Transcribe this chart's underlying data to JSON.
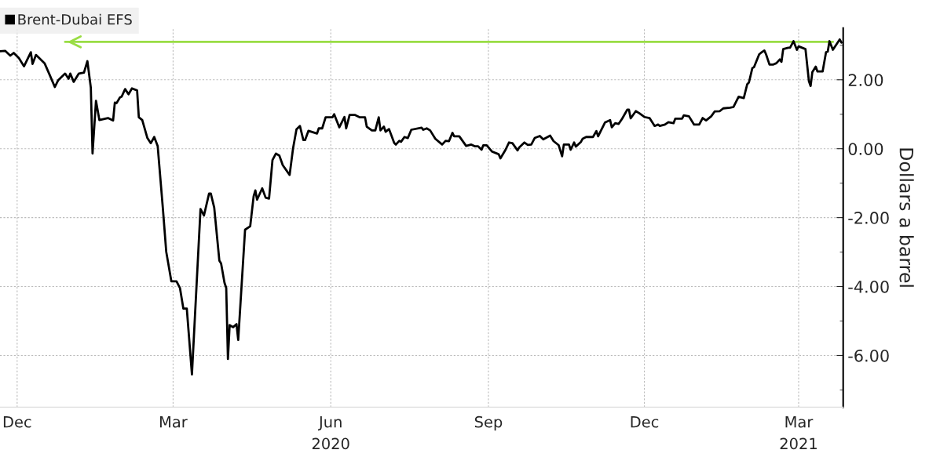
{
  "chart_data": {
    "type": "line",
    "ylabel": "Dollars a barrel",
    "xlim": [
      "2019-11-21",
      "2021-03-27"
    ],
    "xticks": [
      {
        "value": "2019-12-01",
        "label": "Dec"
      },
      {
        "value": "2020-03-01",
        "label": "Mar"
      },
      {
        "value": "2020-06-01",
        "label": "Jun\n2020"
      },
      {
        "value": "2020-09-01",
        "label": "Sep"
      },
      {
        "value": "2020-12-01",
        "label": "Dec"
      },
      {
        "value": "2021-03-01",
        "label": "Mar\n2021"
      }
    ],
    "ylim": [
      -7.5,
      3.5
    ],
    "yticks": [
      {
        "value": 3,
        "label": null
      },
      {
        "value": 2,
        "label": "2.00"
      },
      {
        "value": 1,
        "label": null
      },
      {
        "value": 0,
        "label": "0.00"
      },
      {
        "value": -1,
        "label": null
      },
      {
        "value": -2,
        "label": "-2.00"
      },
      {
        "value": -3,
        "label": null
      },
      {
        "value": -4,
        "label": "-4.00"
      },
      {
        "value": -5,
        "label": null
      },
      {
        "value": -6,
        "label": "-6.00"
      },
      {
        "value": -7,
        "label": null
      }
    ],
    "grid": true,
    "legend": "top left",
    "marker": "none",
    "line_style": "solid",
    "series": [
      {
        "name": "Brent-Dubai EFS",
        "color": "#000000",
        "x": [
          "2019-11-21",
          "2019-11-24",
          "2019-11-27",
          "2019-11-29",
          "2019-12-02",
          "2019-12-05",
          "2019-12-09",
          "2019-12-10",
          "2019-12-12",
          "2019-12-17",
          "2019-12-20",
          "2019-12-23",
          "2019-12-25",
          "2019-12-29",
          "2019-12-31",
          "2020-01-01",
          "2020-01-03",
          "2020-01-06",
          "2020-01-09",
          "2020-01-11",
          "2020-01-13",
          "2020-01-14",
          "2020-01-16",
          "2020-01-18",
          "2020-01-23",
          "2020-01-26",
          "2020-01-27",
          "2020-01-28",
          "2020-01-30",
          "2020-01-31",
          "2020-02-02",
          "2020-02-04",
          "2020-02-06",
          "2020-02-09",
          "2020-02-10",
          "2020-02-12",
          "2020-02-15",
          "2020-02-17",
          "2020-02-19",
          "2020-02-21",
          "2020-02-24",
          "2020-02-26",
          "2020-02-29",
          "2020-03-03",
          "2020-03-05",
          "2020-03-07",
          "2020-03-09",
          "2020-03-12",
          "2020-03-17",
          "2020-03-19",
          "2020-03-22",
          "2020-03-23",
          "2020-03-25",
          "2020-03-28",
          "2020-03-29",
          "2020-03-31",
          "2020-04-01",
          "2020-04-02",
          "2020-04-03",
          "2020-04-05",
          "2020-04-07",
          "2020-04-08",
          "2020-04-12",
          "2020-04-15",
          "2020-04-17",
          "2020-04-18",
          "2020-04-19",
          "2020-04-22",
          "2020-04-24",
          "2020-04-26",
          "2020-04-28",
          "2020-04-30",
          "2020-05-02",
          "2020-05-04",
          "2020-05-08",
          "2020-05-10",
          "2020-05-12",
          "2020-05-14",
          "2020-05-16",
          "2020-05-17",
          "2020-05-19",
          "2020-05-24",
          "2020-05-25",
          "2020-05-27",
          "2020-05-29",
          "2020-06-02",
          "2020-06-03",
          "2020-06-06",
          "2020-06-09",
          "2020-06-10",
          "2020-06-12",
          "2020-06-15",
          "2020-06-18",
          "2020-06-21",
          "2020-06-22",
          "2020-06-25",
          "2020-06-27",
          "2020-06-29",
          "2020-06-30",
          "2020-07-02",
          "2020-07-03",
          "2020-07-05",
          "2020-07-08",
          "2020-07-09",
          "2020-07-11",
          "2020-07-12",
          "2020-07-14",
          "2020-07-16",
          "2020-07-18",
          "2020-07-24",
          "2020-07-25",
          "2020-07-27",
          "2020-07-29",
          "2020-08-01",
          "2020-08-05",
          "2020-08-07",
          "2020-08-09",
          "2020-08-11",
          "2020-08-12",
          "2020-08-15",
          "2020-08-19",
          "2020-08-22",
          "2020-08-24",
          "2020-08-26",
          "2020-08-28",
          "2020-08-29",
          "2020-08-31",
          "2020-09-03",
          "2020-09-06",
          "2020-09-07",
          "2020-09-08",
          "2020-09-11",
          "2020-09-13",
          "2020-09-15",
          "2020-09-18",
          "2020-09-19",
          "2020-09-22",
          "2020-09-24",
          "2020-09-26",
          "2020-09-28",
          "2020-10-01",
          "2020-10-03",
          "2020-10-07",
          "2020-10-09",
          "2020-10-12",
          "2020-10-14",
          "2020-10-15",
          "2020-10-18",
          "2020-10-19",
          "2020-10-21",
          "2020-10-22",
          "2020-10-25",
          "2020-10-26",
          "2020-10-28",
          "2020-11-01",
          "2020-11-03",
          "2020-11-04",
          "2020-11-08",
          "2020-11-11",
          "2020-11-12",
          "2020-11-14",
          "2020-11-16",
          "2020-11-18",
          "2020-11-21",
          "2020-11-22",
          "2020-11-23",
          "2020-11-26",
          "2020-11-28",
          "2020-12-01",
          "2020-12-04",
          "2020-12-07",
          "2020-12-09",
          "2020-12-10",
          "2020-12-13",
          "2020-12-15",
          "2020-12-18",
          "2020-12-19",
          "2020-12-23",
          "2020-12-24",
          "2020-12-27",
          "2020-12-30",
          "2021-01-02",
          "2021-01-04",
          "2021-01-06",
          "2021-01-09",
          "2021-01-11",
          "2021-01-14",
          "2021-01-16",
          "2021-01-20",
          "2021-01-22",
          "2021-01-25",
          "2021-01-28",
          "2021-01-30",
          "2021-01-31",
          "2021-02-02",
          "2021-02-03",
          "2021-02-06",
          "2021-02-07",
          "2021-02-09",
          "2021-02-10",
          "2021-02-12",
          "2021-02-14",
          "2021-02-16",
          "2021-02-18",
          "2021-02-19",
          "2021-02-20",
          "2021-02-23",
          "2021-02-24",
          "2021-02-26",
          "2021-02-28",
          "2021-03-01",
          "2021-03-05",
          "2021-03-07",
          "2021-03-08",
          "2021-03-09",
          "2021-03-11",
          "2021-03-12",
          "2021-03-15",
          "2021-03-17",
          "2021-03-18",
          "2021-03-19",
          "2021-03-21",
          "2021-03-25",
          "2021-03-26"
        ],
        "values": [
          2.83,
          2.84,
          2.7,
          2.78,
          2.63,
          2.39,
          2.8,
          2.46,
          2.72,
          2.48,
          2.14,
          1.79,
          1.99,
          2.18,
          2.03,
          2.18,
          1.94,
          2.18,
          2.21,
          2.54,
          1.77,
          -0.14,
          1.39,
          0.83,
          0.89,
          0.82,
          1.34,
          1.32,
          1.49,
          1.51,
          1.73,
          1.58,
          1.75,
          1.69,
          0.91,
          0.83,
          0.31,
          0.16,
          0.34,
          0.08,
          -1.71,
          -2.99,
          -3.85,
          -3.85,
          -4.04,
          -4.64,
          -4.64,
          -6.55,
          -1.75,
          -1.94,
          -1.3,
          -1.3,
          -1.71,
          -3.25,
          -3.33,
          -3.89,
          -4.04,
          -6.1,
          -5.12,
          -5.18,
          -5.09,
          -5.55,
          -2.35,
          -2.25,
          -1.38,
          -1.21,
          -1.48,
          -1.15,
          -1.42,
          -1.45,
          -0.33,
          -0.14,
          -0.2,
          -0.48,
          -0.76,
          0.01,
          0.56,
          0.66,
          0.25,
          0.25,
          0.52,
          0.44,
          0.59,
          0.59,
          0.91,
          0.91,
          1.0,
          0.62,
          0.92,
          0.59,
          0.98,
          0.98,
          0.91,
          0.91,
          0.64,
          0.53,
          0.53,
          0.91,
          0.53,
          0.64,
          0.49,
          0.57,
          0.17,
          0.12,
          0.23,
          0.2,
          0.34,
          0.31,
          0.55,
          0.61,
          0.55,
          0.59,
          0.53,
          0.29,
          0.12,
          0.23,
          0.22,
          0.46,
          0.36,
          0.36,
          0.08,
          0.12,
          0.07,
          0.07,
          -0.03,
          0.1,
          0.1,
          -0.08,
          -0.14,
          -0.16,
          -0.28,
          -0.03,
          0.18,
          0.16,
          -0.05,
          0.04,
          0.18,
          0.11,
          0.12,
          0.31,
          0.37,
          0.27,
          0.38,
          0.22,
          0.1,
          -0.22,
          0.12,
          0.12,
          -0.03,
          0.18,
          0.06,
          0.2,
          0.29,
          0.34,
          0.34,
          0.51,
          0.36,
          0.76,
          0.83,
          0.62,
          0.74,
          0.72,
          0.87,
          1.13,
          1.13,
          0.88,
          1.09,
          1.03,
          0.92,
          0.89,
          0.66,
          0.7,
          0.66,
          0.7,
          0.77,
          0.74,
          0.87,
          0.87,
          0.97,
          0.94,
          0.7,
          0.7,
          0.89,
          0.82,
          0.94,
          1.08,
          1.09,
          1.17,
          1.19,
          1.21,
          1.51,
          1.47,
          1.87,
          1.92,
          2.34,
          2.37,
          2.74,
          2.78,
          2.85,
          2.74,
          2.44,
          2.44,
          2.48,
          2.59,
          2.52,
          2.89,
          2.93,
          2.93,
          3.12,
          2.87,
          2.97,
          2.89,
          1.96,
          1.82,
          2.22,
          2.38,
          2.24,
          2.24,
          2.8,
          2.82,
          3.12,
          2.87,
          3.17,
          3.08
        ]
      },
      {
        "type": "line",
        "color": "#99dd44",
        "x": [
          "2021-03-21",
          "2019-12-29"
        ],
        "values": [
          3.1,
          3.1
        ]
      }
    ]
  }
}
